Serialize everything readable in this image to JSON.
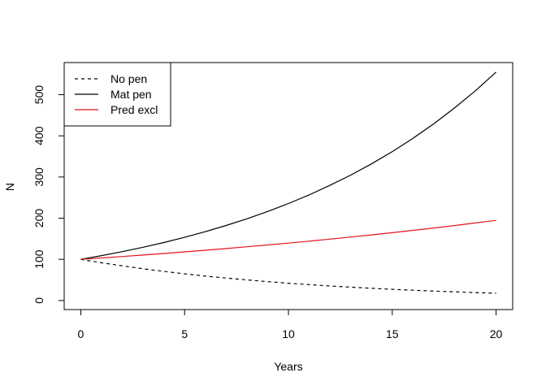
{
  "chart_data": {
    "type": "line",
    "title": "",
    "xlabel": "Years",
    "ylabel": "N",
    "xlim": [
      -0.8,
      20.8
    ],
    "ylim": [
      -22,
      578
    ],
    "x_ticks": [
      0,
      5,
      10,
      15,
      20
    ],
    "y_ticks": [
      0,
      100,
      200,
      300,
      400,
      500
    ],
    "grid": false,
    "legend_position": "top-left",
    "series": [
      {
        "name": "No pen",
        "color": "#000000",
        "linestyle": "dashed",
        "x": [
          0,
          1,
          2,
          3,
          4,
          5,
          6,
          7,
          8,
          9,
          10,
          11,
          12,
          13,
          14,
          15,
          16,
          17,
          18,
          19,
          20
        ],
        "y": [
          100,
          91.7,
          84.1,
          77.1,
          70.7,
          64.8,
          59.4,
          54.5,
          50.0,
          45.8,
          42.0,
          38.5,
          35.3,
          32.4,
          29.7,
          27.2,
          25.0,
          22.9,
          21.0,
          19.3,
          17.7
        ]
      },
      {
        "name": "Mat pen",
        "color": "#000000",
        "linestyle": "solid",
        "x": [
          0,
          1,
          2,
          3,
          4,
          5,
          6,
          7,
          8,
          9,
          10,
          11,
          12,
          13,
          14,
          15,
          16,
          17,
          18,
          19,
          20
        ],
        "y": [
          100,
          109.0,
          118.7,
          129.3,
          140.9,
          153.5,
          167.2,
          182.2,
          198.5,
          216.3,
          235.6,
          256.7,
          279.7,
          304.7,
          331.9,
          361.6,
          394.0,
          429.2,
          467.6,
          509.4,
          555.0
        ]
      },
      {
        "name": "Pred excl",
        "color": "#e8131c",
        "linestyle": "solid",
        "x": [
          0,
          1,
          2,
          3,
          4,
          5,
          6,
          7,
          8,
          9,
          10,
          11,
          12,
          13,
          14,
          15,
          16,
          17,
          18,
          19,
          20
        ],
        "y": [
          100,
          103.4,
          106.9,
          110.5,
          114.2,
          118.1,
          122.1,
          126.2,
          130.5,
          134.9,
          139.5,
          144.2,
          149.1,
          154.2,
          159.4,
          164.8,
          170.4,
          176.2,
          182.1,
          188.3,
          194.7
        ]
      }
    ]
  }
}
